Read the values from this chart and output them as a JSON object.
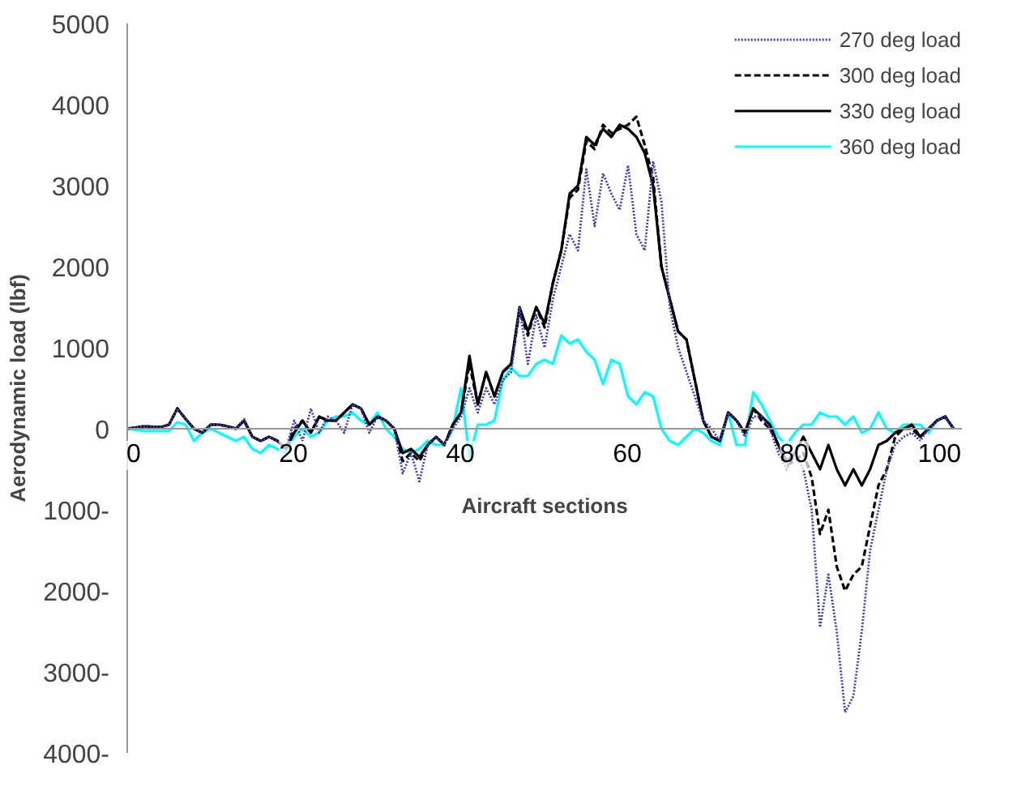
{
  "chart_data": {
    "type": "line",
    "xlabel": "Aircraft sections",
    "ylabel": "Aerodynamic load (lbf)",
    "x": [
      0,
      2,
      4,
      5,
      6,
      7,
      8,
      9,
      10,
      11,
      12,
      13,
      14,
      15,
      16,
      17,
      18,
      19,
      20,
      21,
      22,
      23,
      24,
      25,
      26,
      27,
      28,
      29,
      30,
      31,
      32,
      33,
      34,
      35,
      36,
      37,
      38,
      39,
      40,
      41,
      42,
      43,
      44,
      45,
      46,
      47,
      48,
      49,
      50,
      51,
      52,
      53,
      54,
      55,
      56,
      57,
      58,
      59,
      60,
      61,
      62,
      63,
      64,
      65,
      66,
      67,
      68,
      69,
      70,
      71,
      72,
      73,
      74,
      75,
      76,
      77,
      78,
      79,
      80,
      81,
      82,
      83,
      84,
      85,
      86,
      87,
      88,
      89,
      90,
      91,
      92,
      93,
      94,
      95,
      96,
      97,
      98,
      99
    ],
    "series": [
      {
        "name": "270 deg load",
        "color": "#3c3cb4",
        "line_style": "dotted",
        "values": [
          0,
          30,
          20,
          50,
          250,
          120,
          0,
          -50,
          50,
          50,
          30,
          0,
          120,
          -100,
          -150,
          -100,
          -150,
          -250,
          100,
          -150,
          250,
          -50,
          150,
          100,
          -50,
          300,
          250,
          -50,
          150,
          100,
          0,
          -550,
          -300,
          -650,
          -200,
          -100,
          -200,
          0,
          150,
          500,
          200,
          500,
          300,
          600,
          700,
          1500,
          800,
          1400,
          1000,
          1600,
          2000,
          2400,
          2200,
          3200,
          2500,
          3150,
          2900,
          2700,
          3250,
          2400,
          2200,
          3300,
          2800,
          1500,
          1000,
          700,
          400,
          100,
          0,
          -150,
          200,
          100,
          -100,
          150,
          150,
          0,
          -300,
          -500,
          -300,
          -500,
          -1000,
          -2450,
          -1800,
          -2500,
          -3500,
          -3300,
          -2500,
          -1500,
          -1000,
          -500,
          -200,
          -100,
          -50,
          -150,
          0,
          100,
          150,
          0
        ]
      },
      {
        "name": "300 deg load",
        "color": "#000000",
        "line_style": "dashed",
        "values": [
          0,
          30,
          20,
          50,
          250,
          120,
          0,
          -50,
          50,
          50,
          30,
          0,
          100,
          -100,
          -150,
          -100,
          -150,
          -250,
          0,
          100,
          -50,
          150,
          100,
          100,
          200,
          300,
          250,
          50,
          150,
          100,
          0,
          -400,
          -300,
          -400,
          -200,
          -100,
          -200,
          50,
          200,
          800,
          300,
          700,
          400,
          700,
          800,
          1450,
          1150,
          1500,
          1250,
          1800,
          2200,
          2850,
          2950,
          3550,
          3450,
          3750,
          3650,
          3700,
          3750,
          3850,
          3500,
          3100,
          2000,
          1600,
          1200,
          1100,
          600,
          100,
          -100,
          -150,
          200,
          100,
          -50,
          250,
          100,
          0,
          -200,
          -450,
          -400,
          -300,
          -600,
          -1300,
          -1000,
          -1700,
          -2000,
          -1800,
          -1700,
          -1200,
          -700,
          -500,
          -100,
          0,
          0,
          -100,
          0,
          100,
          150,
          0
        ]
      },
      {
        "name": "330 deg load",
        "color": "#000000",
        "line_style": "solid",
        "values": [
          0,
          30,
          20,
          50,
          250,
          120,
          0,
          -50,
          50,
          50,
          30,
          0,
          100,
          -100,
          -150,
          -100,
          -150,
          -250,
          -50,
          100,
          -50,
          150,
          100,
          100,
          200,
          300,
          250,
          50,
          150,
          100,
          0,
          -300,
          -250,
          -350,
          -200,
          -100,
          -200,
          50,
          200,
          900,
          300,
          700,
          400,
          700,
          800,
          1500,
          1200,
          1500,
          1300,
          1800,
          2200,
          2900,
          3000,
          3600,
          3500,
          3700,
          3600,
          3750,
          3700,
          3600,
          3400,
          3000,
          2000,
          1600,
          1200,
          1100,
          600,
          100,
          -100,
          -150,
          200,
          100,
          -50,
          250,
          150,
          50,
          -200,
          -400,
          -300,
          -100,
          -300,
          -500,
          -200,
          -500,
          -700,
          -500,
          -700,
          -500,
          -200,
          -150,
          -50,
          0,
          50,
          -100,
          0,
          100,
          150,
          0
        ]
      },
      {
        "name": "360 deg load",
        "color": "#00ffff",
        "line_style": "solid",
        "values": [
          0,
          -30,
          -30,
          -30,
          80,
          50,
          -150,
          -50,
          0,
          -50,
          -100,
          -150,
          -100,
          -250,
          -300,
          -200,
          -250,
          -300,
          -100,
          0,
          -100,
          -50,
          100,
          150,
          150,
          200,
          100,
          50,
          200,
          0,
          -100,
          -250,
          -300,
          -250,
          -150,
          -200,
          -200,
          0,
          500,
          -350,
          50,
          50,
          100,
          600,
          750,
          650,
          650,
          800,
          850,
          800,
          1150,
          1050,
          1100,
          950,
          850,
          550,
          850,
          800,
          400,
          300,
          450,
          400,
          0,
          -150,
          -200,
          -100,
          0,
          -50,
          -150,
          -200,
          200,
          -200,
          -200,
          450,
          300,
          100,
          -100,
          -200,
          -50,
          50,
          50,
          200,
          150,
          150,
          50,
          150,
          -50,
          0,
          200,
          0,
          -50,
          50,
          50,
          50,
          -50,
          100,
          150,
          0
        ]
      }
    ],
    "xlim": [
      0,
      100
    ],
    "xticks": [
      0,
      20,
      40,
      60,
      80,
      100
    ],
    "ylim": [
      -4000,
      5000
    ],
    "yticks": [
      {
        "value": -4000,
        "label": "4000-"
      },
      {
        "value": -3000,
        "label": "3000-"
      },
      {
        "value": -2000,
        "label": "2000-"
      },
      {
        "value": -1000,
        "label": "1000-"
      },
      0,
      1000,
      2000,
      3000,
      4000,
      5000
    ],
    "grid": false,
    "legend": "top right"
  }
}
